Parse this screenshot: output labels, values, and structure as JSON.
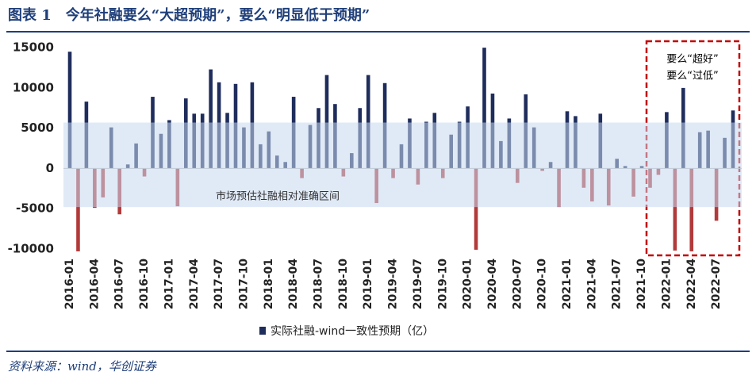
{
  "header": {
    "title": "图表 1　今年社融要么“大超预期”，要么“明显低于预期”"
  },
  "chart_data": {
    "type": "bar",
    "categories": [
      "2016-01",
      null,
      null,
      "2016-04",
      null,
      null,
      "2016-07",
      null,
      null,
      "2016-10",
      null,
      null,
      "2017-01",
      null,
      null,
      "2017-04",
      null,
      null,
      "2017-07",
      null,
      null,
      "2017-10",
      null,
      null,
      "2018-01",
      null,
      null,
      "2018-04",
      null,
      null,
      "2018-07",
      null,
      null,
      "2018-10",
      null,
      null,
      "2019-01",
      null,
      null,
      "2019-04",
      null,
      null,
      "2019-07",
      null,
      null,
      "2019-10",
      null,
      null,
      "2020-01",
      null,
      null,
      "2020-04",
      null,
      null,
      "2020-07",
      null,
      null,
      "2020-10",
      null,
      null,
      "2021-01",
      null,
      null,
      "2021-04",
      null,
      null,
      "2021-07",
      null,
      null,
      "2021-10",
      null,
      null,
      "2022-01",
      null,
      null,
      "2022-04",
      null,
      null,
      "2022-07",
      null,
      null
    ],
    "series": [
      {
        "name": "实际社融-wind一致性预期（亿）",
        "color": "#1f2d5c",
        "negative_color": "#b23a3a",
        "values": [
          14500,
          -10300,
          8300,
          -4900,
          -3600,
          5100,
          -5700,
          500,
          3100,
          -1000,
          8900,
          4300,
          6000,
          -4700,
          8700,
          6800,
          6800,
          12300,
          10700,
          6900,
          10500,
          5100,
          10700,
          3000,
          4600,
          1600,
          800,
          8900,
          -1200,
          5400,
          7500,
          11600,
          8000,
          -1000,
          1900,
          7500,
          11600,
          -4300,
          10600,
          -1200,
          3000,
          6200,
          -2000,
          5800,
          6900,
          -1200,
          4200,
          5800,
          7700,
          -10100,
          15000,
          9300,
          3400,
          6200,
          -1800,
          9200,
          5100,
          -300,
          800,
          -4800,
          7100,
          6500,
          -2400,
          -4100,
          6800,
          -4600,
          1200,
          300,
          -3500,
          300,
          -2400,
          -800,
          7000,
          -10200,
          10000,
          -10300,
          4500,
          4700,
          -6500,
          3800,
          7200
        ]
      }
    ],
    "ylim": [
      -10600,
      15800
    ],
    "yticks": [
      -10000,
      -5000,
      0,
      5000,
      10000,
      15000
    ],
    "band": {
      "range": [
        -4800,
        5700
      ],
      "label": "市场预估社融相对准确区间",
      "color": "#c6d9f0"
    },
    "annotation": [
      "要么“超好”",
      "要么“过低”"
    ],
    "legend": "bottom"
  },
  "footer": {
    "source": "资料来源：wind，华创证券"
  }
}
